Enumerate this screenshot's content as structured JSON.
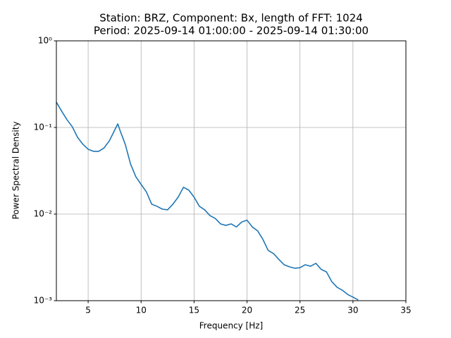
{
  "chart_data": {
    "type": "line",
    "title": "Station: BRZ, Component: Bx, length of FFT: 1024",
    "subtitle": "Period: 2025-09-14 01:00:00 - 2025-09-14 01:30:00",
    "x_label": "Frequency [Hz]",
    "y_label": "Power Spectral Density",
    "log_y": true,
    "grid": true,
    "xlim": [
      2,
      35
    ],
    "ylim": [
      0.001,
      1
    ],
    "xticks": [
      5,
      10,
      15,
      20,
      25,
      30,
      35
    ],
    "yticks": [
      {
        "value": 0.001,
        "label": "10⁻³"
      },
      {
        "value": 0.01,
        "label": "10⁻²"
      },
      {
        "value": 0.1,
        "label": "10⁻¹"
      },
      {
        "value": 1,
        "label": "10⁰"
      }
    ],
    "x": [
      2.0,
      2.5,
      3.0,
      3.5,
      4.0,
      4.5,
      5.0,
      5.5,
      6.0,
      6.5,
      7.0,
      7.5,
      7.8,
      8.0,
      8.5,
      9.0,
      9.5,
      10.0,
      10.5,
      11.0,
      11.5,
      12.0,
      12.5,
      13.0,
      13.5,
      14.0,
      14.5,
      15.0,
      15.5,
      16.0,
      16.5,
      17.0,
      17.5,
      18.0,
      18.5,
      19.0,
      19.5,
      20.0,
      20.5,
      21.0,
      21.5,
      22.0,
      22.5,
      23.0,
      23.5,
      24.0,
      24.5,
      25.0,
      25.5,
      26.0,
      26.5,
      27.0,
      27.5,
      28.0,
      28.5,
      29.0,
      29.5,
      30.0,
      30.5
    ],
    "series": [
      {
        "color": "#1f77b4",
        "values": [
          0.196,
          0.154,
          0.123,
          0.102,
          0.077,
          0.064,
          0.056,
          0.053,
          0.053,
          0.058,
          0.07,
          0.093,
          0.11,
          0.093,
          0.064,
          0.038,
          0.027,
          0.022,
          0.018,
          0.013,
          0.0123,
          0.0114,
          0.0112,
          0.013,
          0.0157,
          0.0204,
          0.0189,
          0.0157,
          0.0123,
          0.0112,
          0.0096,
          0.0089,
          0.0077,
          0.0074,
          0.0077,
          0.0071,
          0.0081,
          0.0085,
          0.0071,
          0.0064,
          0.0051,
          0.0038,
          0.0035,
          0.003,
          0.0026,
          0.00246,
          0.00237,
          0.0024,
          0.0026,
          0.0025,
          0.0027,
          0.0023,
          0.00215,
          0.00166,
          0.00143,
          0.00132,
          0.00118,
          0.0011,
          0.00102
        ]
      }
    ]
  }
}
